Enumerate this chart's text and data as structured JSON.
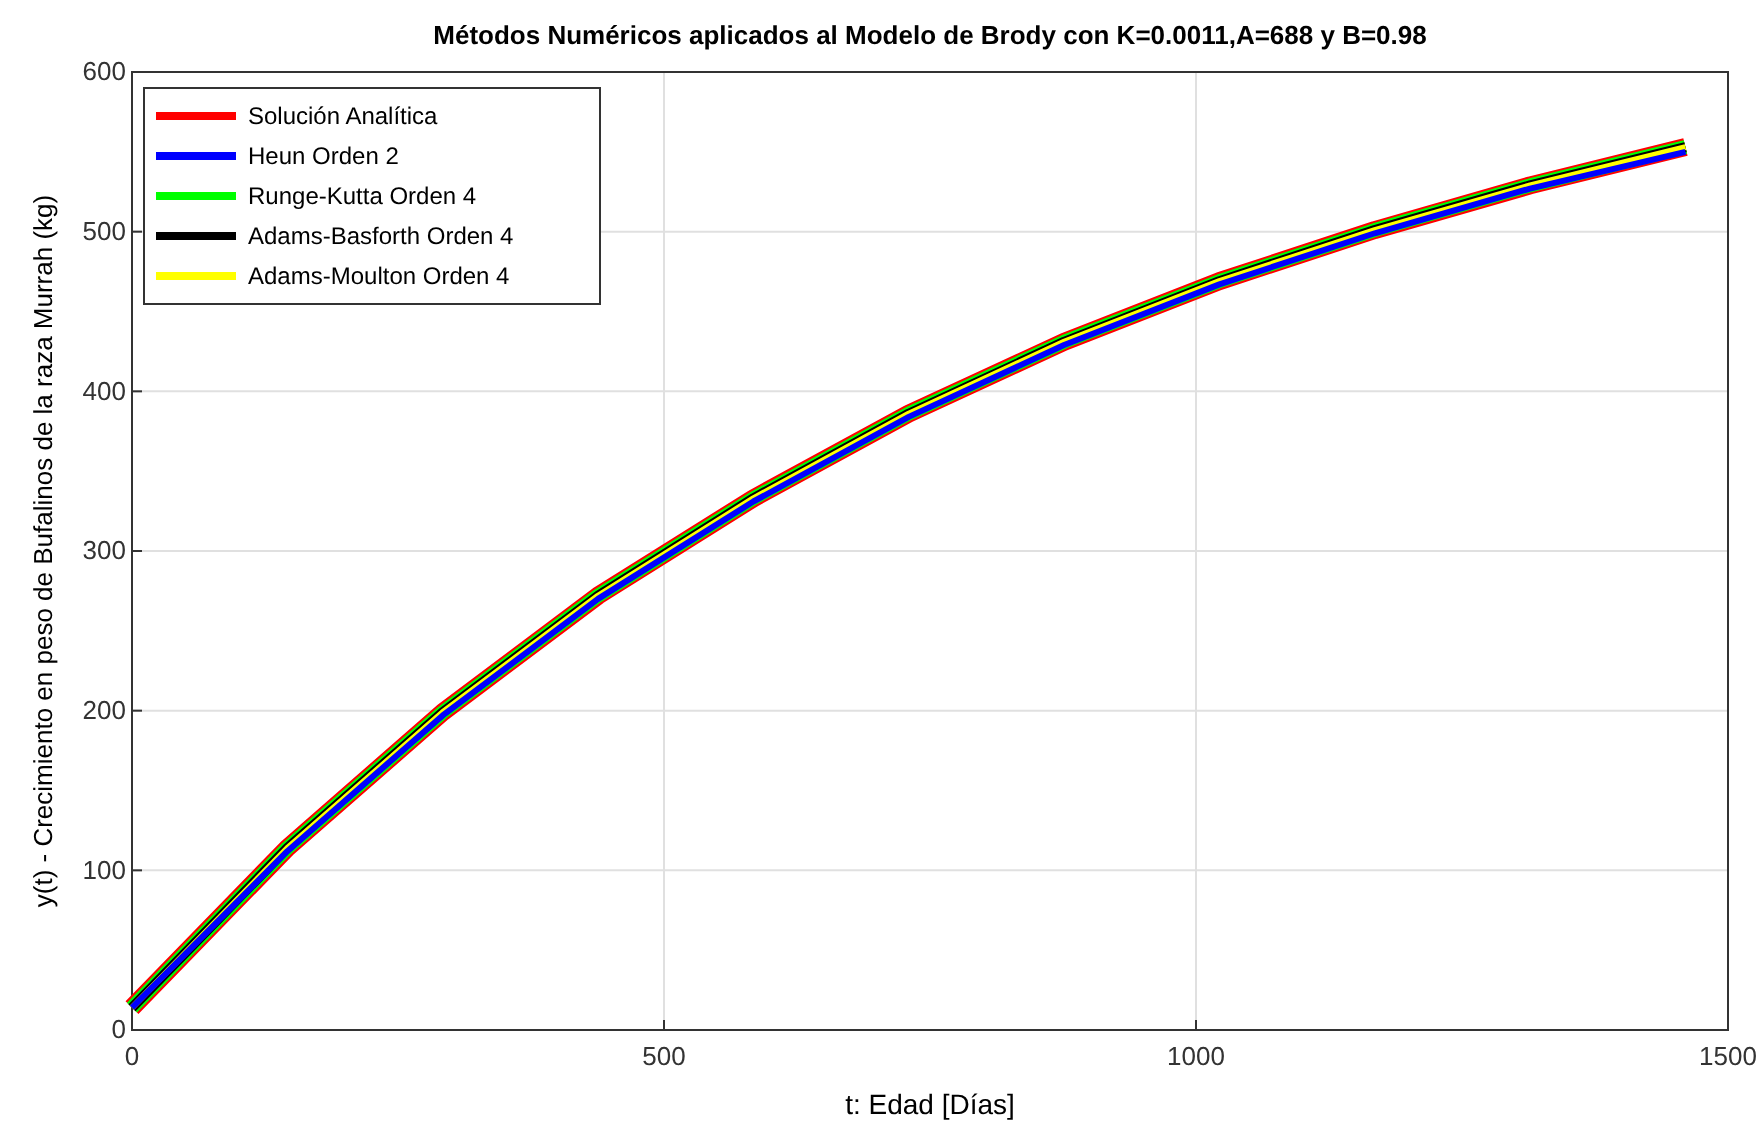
{
  "chart_data": {
    "type": "line",
    "title": "Métodos Numéricos aplicados al Modelo de Brody con K=0.0011,A=688 y B=0.98",
    "xlabel": "t: Edad [Días]",
    "ylabel": "y(t) - Crecimiento en peso de Bufalinos de la raza Murrah (kg)",
    "x": [
      0,
      146,
      292,
      438,
      584,
      730,
      876,
      1022,
      1168,
      1314,
      1460
    ],
    "series": [
      {
        "name": "Solución Analítica",
        "color": "#ff0000",
        "values": [
          14,
          114,
          199,
          272,
          333,
          386,
          431,
          469,
          501,
          529,
          553
        ]
      },
      {
        "name": "Heun Orden 2",
        "color": "#0000ff",
        "values": [
          14,
          112,
          197,
          270,
          331,
          384,
          429,
          467,
          499,
          527,
          550
        ]
      },
      {
        "name": "Runge-Kutta Orden 4",
        "color": "#00ff00",
        "values": [
          14,
          114,
          199,
          272,
          333,
          386,
          431,
          469,
          501,
          529,
          553
        ]
      },
      {
        "name": "Adams-Basforth Orden 4",
        "color": "#000000",
        "values": [
          14,
          114,
          199,
          272,
          333,
          386,
          431,
          469,
          501,
          529,
          553
        ]
      },
      {
        "name": "Adams-Moulton Orden 4",
        "color": "#ffff00",
        "values": [
          14,
          114,
          199,
          272,
          333,
          386,
          431,
          469,
          501,
          529,
          553
        ]
      }
    ],
    "xlim": [
      0,
      1500
    ],
    "xticks": [
      0,
      500,
      1000,
      1500
    ],
    "ylim": [
      0,
      600
    ],
    "yticks": [
      0,
      100,
      200,
      300,
      400,
      500,
      600
    ],
    "grid": true,
    "legend": "top left",
    "marker": "none",
    "line_style": "solid"
  }
}
